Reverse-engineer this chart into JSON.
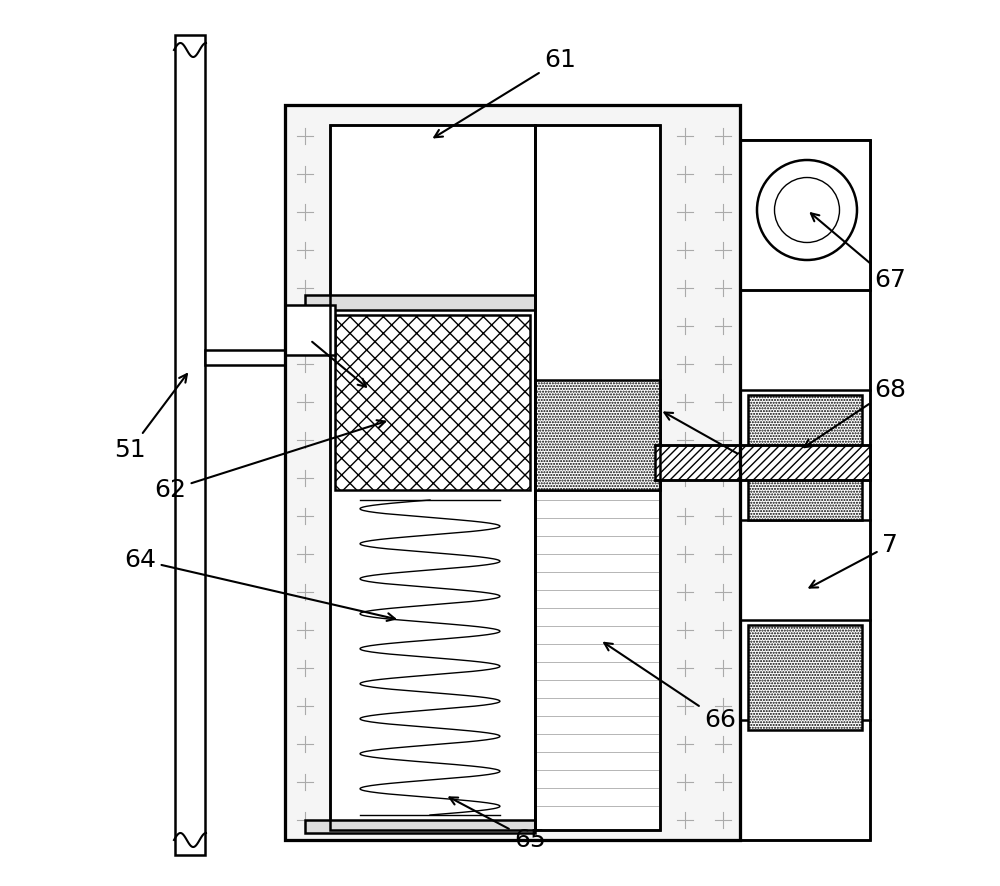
{
  "bg_color": "#ffffff",
  "line_color": "#000000",
  "label_fontsize": 18,
  "fig_width": 10.0,
  "fig_height": 8.86
}
